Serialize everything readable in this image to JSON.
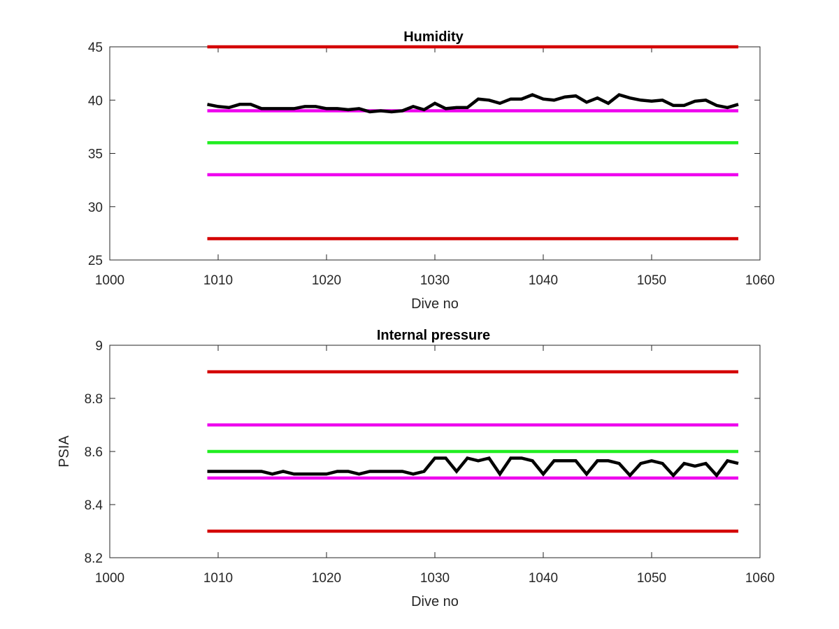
{
  "chart_data": [
    {
      "type": "line",
      "title": "Humidity",
      "xlabel": "Dive no",
      "ylabel": "",
      "xlim": [
        1000,
        1060
      ],
      "ylim": [
        25,
        45
      ],
      "xticks": [
        "1000",
        "1010",
        "1020",
        "1030",
        "1040",
        "1050",
        "1060"
      ],
      "yticks": [
        "25",
        "30",
        "35",
        "40",
        "45"
      ],
      "grid": false,
      "reference_lines": [
        {
          "y": 45,
          "x": [
            1009,
            1058
          ],
          "color": "#d40000"
        },
        {
          "y": 39,
          "x": [
            1009,
            1058
          ],
          "color": "#ee00ee"
        },
        {
          "y": 36,
          "x": [
            1009,
            1058
          ],
          "color": "#22ee22"
        },
        {
          "y": 33,
          "x": [
            1009,
            1058
          ],
          "color": "#ee00ee"
        },
        {
          "y": 27,
          "x": [
            1009,
            1058
          ],
          "color": "#d40000"
        }
      ],
      "series": [
        {
          "color": "#000000",
          "x": [
            1009,
            1010,
            1011,
            1012,
            1013,
            1014,
            1015,
            1016,
            1017,
            1018,
            1019,
            1020,
            1021,
            1022,
            1023,
            1024,
            1025,
            1026,
            1027,
            1028,
            1029,
            1030,
            1031,
            1032,
            1033,
            1034,
            1035,
            1036,
            1037,
            1038,
            1039,
            1040,
            1041,
            1042,
            1043,
            1044,
            1045,
            1046,
            1047,
            1048,
            1049,
            1050,
            1051,
            1052,
            1053,
            1054,
            1055,
            1056,
            1057,
            1058
          ],
          "y": [
            39.6,
            39.4,
            39.3,
            39.6,
            39.6,
            39.2,
            39.2,
            39.2,
            39.2,
            39.4,
            39.4,
            39.2,
            39.2,
            39.1,
            39.2,
            38.9,
            39.0,
            38.9,
            39.0,
            39.4,
            39.1,
            39.7,
            39.2,
            39.3,
            39.3,
            40.1,
            40.0,
            39.7,
            40.1,
            40.1,
            40.5,
            40.1,
            40.0,
            40.3,
            40.4,
            39.8,
            40.2,
            39.7,
            40.5,
            40.2,
            40.0,
            39.9,
            40.0,
            39.5,
            39.5,
            39.9,
            40.0,
            39.5,
            39.3,
            39.6
          ]
        }
      ]
    },
    {
      "type": "line",
      "title": "Internal pressure",
      "xlabel": "Dive no",
      "ylabel": "PSIA",
      "xlim": [
        1000,
        1060
      ],
      "ylim": [
        8.2,
        9.0
      ],
      "xticks": [
        "1000",
        "1010",
        "1020",
        "1030",
        "1040",
        "1050",
        "1060"
      ],
      "yticks": [
        "8.2",
        "8.4",
        "8.6",
        "8.8",
        "9"
      ],
      "grid": false,
      "reference_lines": [
        {
          "y": 8.9,
          "x": [
            1009,
            1058
          ],
          "color": "#d40000"
        },
        {
          "y": 8.7,
          "x": [
            1009,
            1058
          ],
          "color": "#ee00ee"
        },
        {
          "y": 8.6,
          "x": [
            1009,
            1058
          ],
          "color": "#22ee22"
        },
        {
          "y": 8.5,
          "x": [
            1009,
            1058
          ],
          "color": "#ee00ee"
        },
        {
          "y": 8.3,
          "x": [
            1009,
            1058
          ],
          "color": "#d40000"
        }
      ],
      "series": [
        {
          "color": "#000000",
          "x": [
            1009,
            1010,
            1011,
            1012,
            1013,
            1014,
            1015,
            1016,
            1017,
            1018,
            1019,
            1020,
            1021,
            1022,
            1023,
            1024,
            1025,
            1026,
            1027,
            1028,
            1029,
            1030,
            1031,
            1032,
            1033,
            1034,
            1035,
            1036,
            1037,
            1038,
            1039,
            1040,
            1041,
            1042,
            1043,
            1044,
            1045,
            1046,
            1047,
            1048,
            1049,
            1050,
            1051,
            1052,
            1053,
            1054,
            1055,
            1056,
            1057,
            1058
          ],
          "y": [
            8.525,
            8.525,
            8.525,
            8.525,
            8.525,
            8.525,
            8.515,
            8.525,
            8.515,
            8.515,
            8.515,
            8.515,
            8.525,
            8.525,
            8.515,
            8.525,
            8.525,
            8.525,
            8.525,
            8.515,
            8.525,
            8.575,
            8.575,
            8.525,
            8.575,
            8.565,
            8.575,
            8.515,
            8.575,
            8.575,
            8.565,
            8.515,
            8.565,
            8.565,
            8.565,
            8.515,
            8.565,
            8.565,
            8.555,
            8.51,
            8.555,
            8.565,
            8.555,
            8.51,
            8.555,
            8.545,
            8.555,
            8.51,
            8.565,
            8.555
          ]
        }
      ]
    }
  ]
}
